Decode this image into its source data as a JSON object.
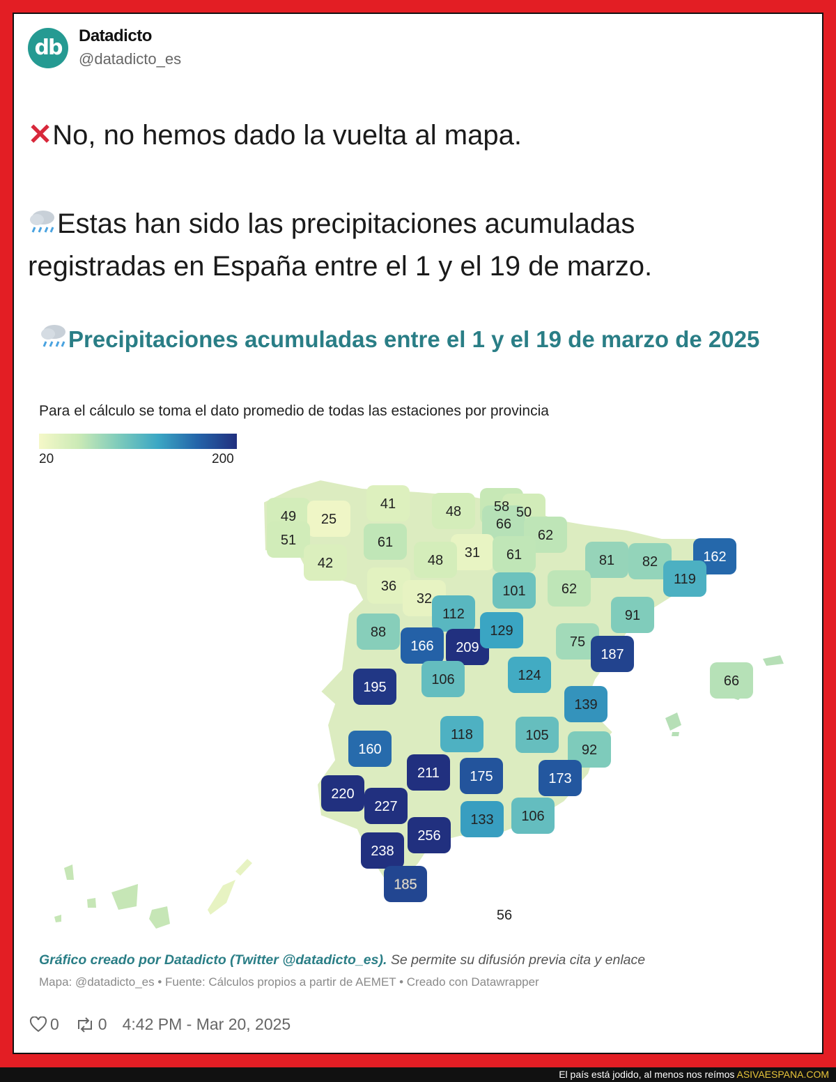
{
  "tweet": {
    "author_initials": "db",
    "author_name": "Datadicto",
    "author_handle": "@datadicto_es",
    "line1_icon": "cross-mark-icon",
    "line1_text": "No, no hemos dado la vuelta al mapa.",
    "line2_icon": "rain-cloud-icon",
    "line2_text": "Estas han sido las precipitaciones acumuladas",
    "line3_text": "registradas en España entre el 1 y el 19 de marzo.",
    "likes": "0",
    "retweets": "0",
    "timestamp": "4:42 PM - Mar 20, 2025"
  },
  "chart": {
    "title": "Precipitaciones acumuladas entre el 1 y el 19 de marzo de 2025",
    "subtitle": "Para el cálculo se toma el dato promedio de todas las estaciones por provincia",
    "legend_min": "20",
    "legend_max": "200",
    "credit_bold": "Gráfico creado por Datadicto (Twitter @datadicto_es).",
    "credit_rest": "Se permite su difusión previa cita y enlace",
    "source": "Mapa: @datadicto_es • Fuente: Cálculos propios a partir de AEMET • Creado con Datawrapper"
  },
  "chart_data": {
    "type": "choropleth",
    "unit": "mm",
    "scale": {
      "min": 20,
      "max": 200,
      "colors": [
        "#f5f8c8",
        "#cbeab6",
        "#7ecbbb",
        "#3ba7c4",
        "#2464a9",
        "#21307f"
      ]
    },
    "regions": [
      {
        "value": 49
      },
      {
        "value": 25
      },
      {
        "value": 41
      },
      {
        "value": 48
      },
      {
        "value": 58
      },
      {
        "value": 50
      },
      {
        "value": 66
      },
      {
        "value": 51
      },
      {
        "value": 61
      },
      {
        "value": 62
      },
      {
        "value": 42
      },
      {
        "value": 31
      },
      {
        "value": 48
      },
      {
        "value": 61
      },
      {
        "value": 81
      },
      {
        "value": 82
      },
      {
        "value": 162
      },
      {
        "value": 36
      },
      {
        "value": 32
      },
      {
        "value": 119
      },
      {
        "value": 101
      },
      {
        "value": 62
      },
      {
        "value": 112
      },
      {
        "value": 91
      },
      {
        "value": 88
      },
      {
        "value": 166
      },
      {
        "value": 209
      },
      {
        "value": 129
      },
      {
        "value": 75
      },
      {
        "value": 187
      },
      {
        "value": 195
      },
      {
        "value": 106
      },
      {
        "value": 124
      },
      {
        "value": 66
      },
      {
        "value": 139
      },
      {
        "value": 118
      },
      {
        "value": 105
      },
      {
        "value": 160
      },
      {
        "value": 92
      },
      {
        "value": 211
      },
      {
        "value": 175
      },
      {
        "value": 173
      },
      {
        "value": 220
      },
      {
        "value": 227
      },
      {
        "value": 133
      },
      {
        "value": 106
      },
      {
        "value": 256
      },
      {
        "value": 238
      },
      {
        "value": 185
      },
      {
        "value": 56
      }
    ]
  },
  "banner": {
    "text": "El país está jodido, al menos nos reímos",
    "site": "ASIVAESPANA.COM"
  }
}
